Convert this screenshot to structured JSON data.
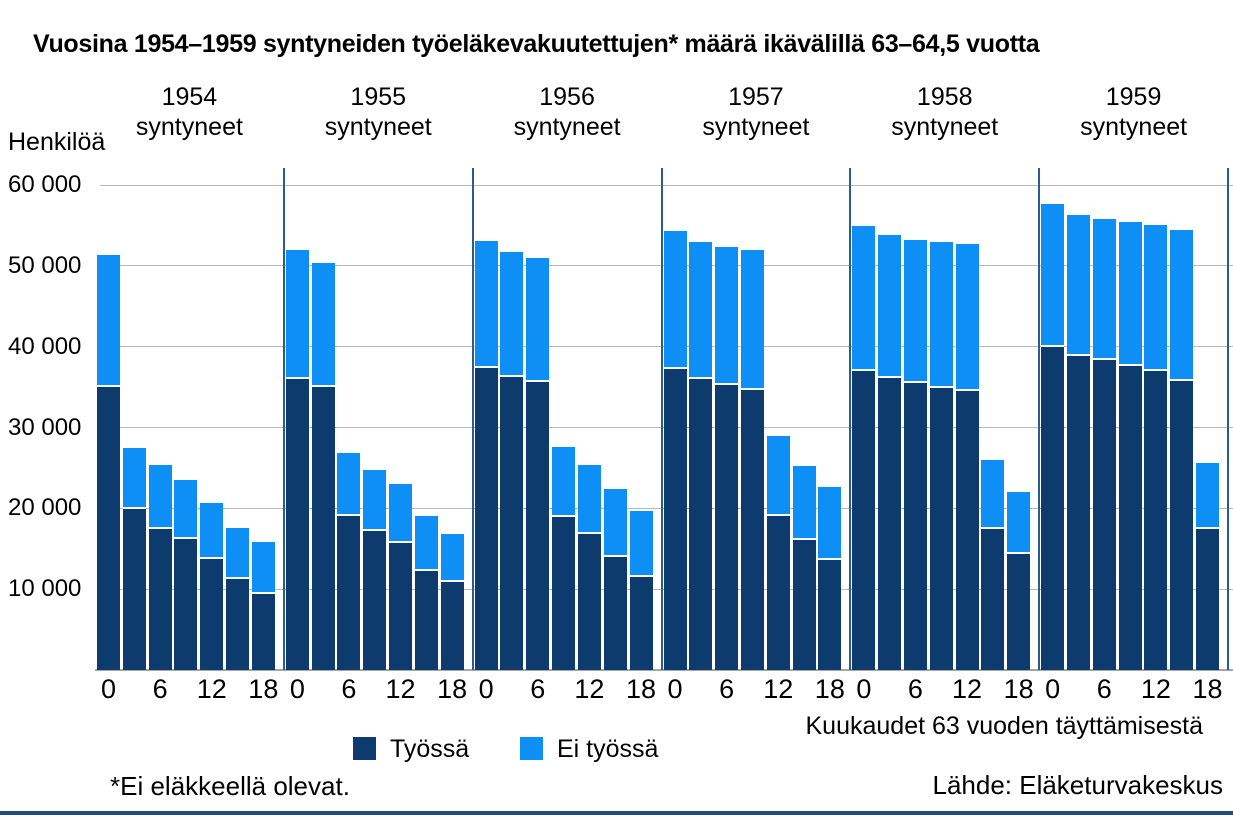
{
  "title": "Vuosina 1954–1959 syntyneiden työeläkevakuutettujen* määrä ikävälillä 63–64,5 vuotta",
  "y_axis": {
    "label": "Henkilöä",
    "ticks": [
      "60 000",
      "50 000",
      "40 000",
      "30 000",
      "20 000",
      "10 000"
    ],
    "max": 60000
  },
  "x_axis": {
    "title": "Kuukaudet 63 vuoden täyttämisestä",
    "tick_labels": [
      "0",
      "6",
      "12",
      "18"
    ]
  },
  "legend": {
    "items": [
      {
        "label": "Työssä",
        "color": "#0d3b6e"
      },
      {
        "label": "Ei työssä",
        "color": "#0e8ff5"
      }
    ]
  },
  "footnote": "*Ei eläkkeellä olevat.",
  "source": "Lähde: Eläketurvakeskus",
  "colors": {
    "tyossa": "#0d3b6e",
    "ei_tyossa": "#0e8ff5",
    "separator": "#2a5d8e",
    "gridline": "#b9b9b9",
    "axisline": "#a6a6a6",
    "bottom_border": "#1f4e79",
    "text": "#000000"
  },
  "chart_data": {
    "type": "bar",
    "stacked": true,
    "months": [
      0,
      3,
      6,
      9,
      12,
      15,
      18
    ],
    "ylim": [
      0,
      60000
    ],
    "grid": true,
    "legend_position": "bottom",
    "series_names": [
      "Työssä",
      "Ei työssä"
    ],
    "panel_subtitle": "syntyneet",
    "panels": [
      {
        "year": "1954",
        "subtitle": "syntyneet",
        "tyossa": [
          35000,
          19900,
          17500,
          16200,
          13700,
          11300,
          9400
        ],
        "ei_tyossa": [
          16300,
          7600,
          7800,
          7300,
          7000,
          6300,
          6400
        ]
      },
      {
        "year": "1955",
        "subtitle": "syntyneet",
        "tyossa": [
          36000,
          35000,
          19000,
          17200,
          15700,
          12300,
          10900
        ],
        "ei_tyossa": [
          16000,
          15400,
          7800,
          7500,
          7300,
          6800,
          5900
        ]
      },
      {
        "year": "1956",
        "subtitle": "syntyneet",
        "tyossa": [
          37300,
          36300,
          35600,
          18900,
          16800,
          14000,
          11500
        ],
        "ei_tyossa": [
          15800,
          15400,
          15400,
          8700,
          8500,
          8400,
          8200
        ]
      },
      {
        "year": "1957",
        "subtitle": "syntyneet",
        "tyossa": [
          37200,
          36000,
          35200,
          34600,
          19100,
          16100,
          13600
        ],
        "ei_tyossa": [
          17100,
          16900,
          17100,
          17300,
          9900,
          9100,
          9000
        ]
      },
      {
        "year": "1958",
        "subtitle": "syntyneet",
        "tyossa": [
          37000,
          36100,
          35500,
          34900,
          34500,
          17500,
          14300
        ],
        "ei_tyossa": [
          17900,
          17700,
          17700,
          18000,
          18200,
          8500,
          7700
        ]
      },
      {
        "year": "1959",
        "subtitle": "syntyneet",
        "tyossa": [
          39900,
          38900,
          38300,
          37600,
          37000,
          35800,
          17400
        ],
        "ei_tyossa": [
          17700,
          17400,
          17500,
          17800,
          18100,
          18600,
          8200
        ]
      }
    ]
  }
}
